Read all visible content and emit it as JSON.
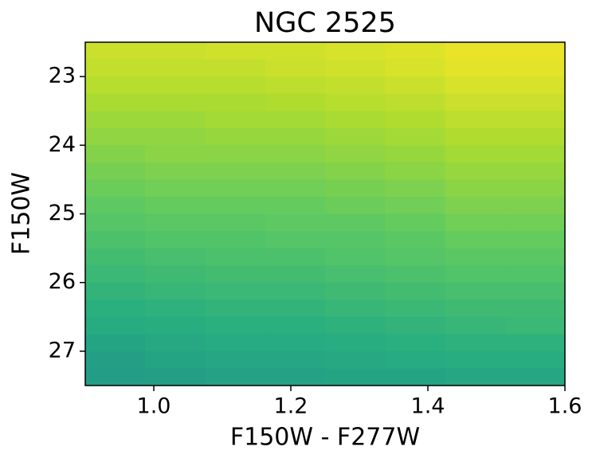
{
  "chart_data": {
    "type": "heatmap",
    "title": "NGC 2525",
    "x_label": "F150W - F277W",
    "y_label": "F150W",
    "colormap": "viridis",
    "zlim": [
      0,
      1
    ],
    "x_edges": [
      0.9,
      0.9875,
      1.075,
      1.1625,
      1.25,
      1.3375,
      1.425,
      1.5125,
      1.6
    ],
    "y_edges": [
      22.5,
      22.75,
      23,
      23.25,
      23.5,
      23.75,
      24,
      24.25,
      24.5,
      24.75,
      25,
      25.25,
      25.5,
      25.75,
      26,
      26.25,
      26.5,
      26.75,
      27,
      27.25,
      27.5
    ],
    "z": [
      [
        0.92,
        0.92,
        0.93,
        0.93,
        0.94,
        0.95,
        0.97,
        0.97
      ],
      [
        0.91,
        0.91,
        0.91,
        0.92,
        0.93,
        0.94,
        0.96,
        0.96
      ],
      [
        0.89,
        0.89,
        0.89,
        0.9,
        0.91,
        0.92,
        0.94,
        0.94
      ],
      [
        0.87,
        0.87,
        0.87,
        0.88,
        0.89,
        0.9,
        0.92,
        0.92
      ],
      [
        0.85,
        0.85,
        0.86,
        0.86,
        0.87,
        0.88,
        0.9,
        0.9
      ],
      [
        0.83,
        0.83,
        0.84,
        0.84,
        0.85,
        0.86,
        0.88,
        0.88
      ],
      [
        0.81,
        0.82,
        0.82,
        0.82,
        0.83,
        0.84,
        0.86,
        0.86
      ],
      [
        0.79,
        0.8,
        0.8,
        0.8,
        0.81,
        0.82,
        0.84,
        0.84
      ],
      [
        0.77,
        0.78,
        0.78,
        0.78,
        0.79,
        0.8,
        0.82,
        0.82
      ],
      [
        0.75,
        0.76,
        0.76,
        0.76,
        0.77,
        0.78,
        0.8,
        0.8
      ],
      [
        0.73,
        0.74,
        0.74,
        0.75,
        0.75,
        0.76,
        0.78,
        0.78
      ],
      [
        0.71,
        0.72,
        0.72,
        0.73,
        0.73,
        0.74,
        0.76,
        0.76
      ],
      [
        0.69,
        0.7,
        0.71,
        0.71,
        0.72,
        0.73,
        0.74,
        0.74
      ],
      [
        0.67,
        0.68,
        0.69,
        0.69,
        0.7,
        0.71,
        0.72,
        0.72
      ],
      [
        0.65,
        0.66,
        0.67,
        0.67,
        0.68,
        0.69,
        0.7,
        0.7
      ],
      [
        0.63,
        0.64,
        0.65,
        0.65,
        0.66,
        0.67,
        0.68,
        0.68
      ],
      [
        0.61,
        0.62,
        0.63,
        0.63,
        0.64,
        0.65,
        0.66,
        0.67
      ],
      [
        0.58,
        0.6,
        0.61,
        0.61,
        0.62,
        0.63,
        0.64,
        0.64
      ],
      [
        0.56,
        0.58,
        0.59,
        0.59,
        0.6,
        0.61,
        0.62,
        0.62
      ],
      [
        0.55,
        0.56,
        0.57,
        0.57,
        0.58,
        0.58,
        0.59,
        0.59
      ]
    ],
    "xlim": [
      0.9,
      1.6
    ],
    "xticks": [
      {
        "value": 1,
        "label": "1.0"
      },
      1.2,
      1.4,
      1.6
    ],
    "ylim": [
      27.5,
      22.5
    ],
    "yticks": [
      23,
      24,
      25,
      26,
      27
    ]
  }
}
